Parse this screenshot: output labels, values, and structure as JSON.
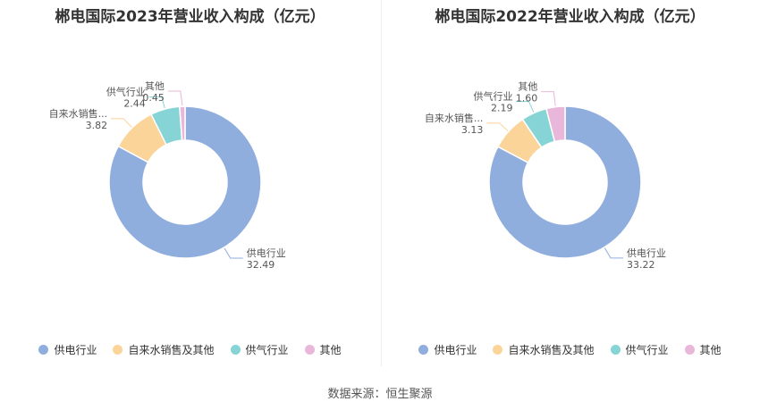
{
  "colors": [
    "#8faedd",
    "#fbd49a",
    "#86d4d6",
    "#e9b7d9"
  ],
  "chart_data": [
    {
      "type": "pie",
      "title": "郴电国际2023年营业收入构成（亿元）",
      "categories": [
        "供电行业",
        "自来水销售及其他",
        "供气行业",
        "其他"
      ],
      "labels": [
        "供电行业",
        "自来水销售及其他",
        "供气行业",
        "其他"
      ],
      "label_texts": [
        "供电行业",
        "自来水销售...",
        "供气行业",
        "其他"
      ],
      "values": [
        32.49,
        3.82,
        2.44,
        0.45
      ],
      "value_texts": [
        "32.49",
        "3.82",
        "2.44",
        "0.45"
      ],
      "legend": "bottom"
    },
    {
      "type": "pie",
      "title": "郴电国际2022年营业收入构成（亿元）",
      "categories": [
        "供电行业",
        "自来水销售及其他",
        "供气行业",
        "其他"
      ],
      "labels": [
        "供电行业",
        "自来水销售及其他",
        "供气行业",
        "其他"
      ],
      "label_texts": [
        "供电行业",
        "自来水销售...",
        "供气行业",
        "其他"
      ],
      "values": [
        33.22,
        3.13,
        2.19,
        1.6
      ],
      "value_texts": [
        "33.22",
        "3.13",
        "2.19",
        "1.60"
      ],
      "legend": "bottom"
    }
  ],
  "source": "数据来源：恒生聚源"
}
